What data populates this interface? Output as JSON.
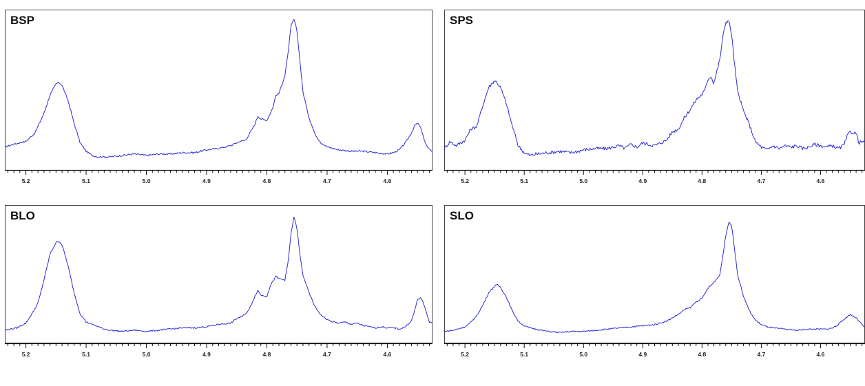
{
  "chart_data": [
    {
      "type": "line",
      "title": "BSP",
      "xlabel": "",
      "ylabel": "",
      "x_reversed": true,
      "xlim": [
        5.235,
        4.525
      ],
      "ylim": [
        0,
        1.0
      ],
      "grid": false,
      "x_ticks": [
        "5.2",
        "5.1",
        "5.0",
        "4.9",
        "4.8",
        "4.7",
        "4.6"
      ],
      "line_color": "#2b2bd6",
      "series": [
        {
          "x": [
            5.235,
            5.22,
            5.2,
            5.185,
            5.17,
            5.16,
            5.15,
            5.145,
            5.14,
            5.13,
            5.12,
            5.11,
            5.1,
            5.09,
            5.08,
            5.06,
            5.04,
            5.02,
            5.0,
            4.98,
            4.96,
            4.94,
            4.92,
            4.9,
            4.88,
            4.86,
            4.845,
            4.835,
            4.82,
            4.815,
            4.81,
            4.8,
            4.79,
            4.785,
            4.78,
            4.77,
            4.765,
            4.76,
            4.755,
            4.75,
            4.745,
            4.74,
            4.73,
            4.72,
            4.71,
            4.7,
            4.69,
            4.68,
            4.66,
            4.64,
            4.62,
            4.6,
            4.59,
            4.58,
            4.57,
            4.56,
            4.555,
            4.55,
            4.545,
            4.54,
            4.535,
            4.53,
            4.525
          ],
          "y": [
            0.09,
            0.11,
            0.13,
            0.19,
            0.33,
            0.46,
            0.54,
            0.55,
            0.53,
            0.42,
            0.26,
            0.12,
            0.06,
            0.03,
            0.02,
            0.02,
            0.03,
            0.04,
            0.03,
            0.04,
            0.04,
            0.05,
            0.05,
            0.07,
            0.08,
            0.1,
            0.13,
            0.14,
            0.25,
            0.31,
            0.29,
            0.28,
            0.37,
            0.46,
            0.47,
            0.6,
            0.75,
            0.95,
            1.0,
            0.92,
            0.7,
            0.48,
            0.3,
            0.18,
            0.12,
            0.09,
            0.08,
            0.07,
            0.06,
            0.06,
            0.05,
            0.04,
            0.05,
            0.07,
            0.12,
            0.19,
            0.24,
            0.26,
            0.23,
            0.16,
            0.1,
            0.07,
            0.06
          ]
        }
      ]
    },
    {
      "type": "line",
      "title": "SPS",
      "xlabel": "",
      "ylabel": "",
      "x_reversed": true,
      "xlim": [
        5.235,
        4.525
      ],
      "ylim": [
        0,
        1.0
      ],
      "grid": false,
      "x_ticks": [
        "5.2",
        "5.1",
        "5.0",
        "4.9",
        "4.8",
        "4.7",
        "4.6"
      ],
      "line_color": "#2b2bd6",
      "series": [
        {
          "x": [
            5.235,
            5.225,
            5.215,
            5.2,
            5.19,
            5.18,
            5.17,
            5.16,
            5.15,
            5.145,
            5.14,
            5.13,
            5.12,
            5.11,
            5.1,
            5.09,
            5.08,
            5.06,
            5.04,
            5.02,
            5.0,
            4.98,
            4.96,
            4.94,
            4.93,
            4.92,
            4.91,
            4.9,
            4.88,
            4.86,
            4.85,
            4.84,
            4.83,
            4.82,
            4.81,
            4.8,
            4.795,
            4.79,
            4.785,
            4.78,
            4.77,
            4.765,
            4.76,
            4.755,
            4.75,
            4.745,
            4.74,
            4.73,
            4.72,
            4.71,
            4.7,
            4.69,
            4.68,
            4.67,
            4.66,
            4.65,
            4.64,
            4.63,
            4.62,
            4.61,
            4.6,
            4.59,
            4.58,
            4.57,
            4.565,
            4.56,
            4.555,
            4.55,
            4.54,
            4.535,
            4.53,
            4.525
          ],
          "y": [
            0.08,
            0.13,
            0.1,
            0.14,
            0.22,
            0.24,
            0.39,
            0.52,
            0.57,
            0.55,
            0.52,
            0.4,
            0.24,
            0.1,
            0.05,
            0.03,
            0.04,
            0.05,
            0.06,
            0.05,
            0.07,
            0.08,
            0.08,
            0.1,
            0.08,
            0.11,
            0.09,
            0.12,
            0.1,
            0.14,
            0.2,
            0.22,
            0.3,
            0.36,
            0.43,
            0.47,
            0.5,
            0.58,
            0.6,
            0.55,
            0.72,
            0.88,
            0.99,
            1.0,
            0.9,
            0.68,
            0.49,
            0.35,
            0.25,
            0.13,
            0.09,
            0.07,
            0.1,
            0.08,
            0.1,
            0.09,
            0.1,
            0.08,
            0.09,
            0.11,
            0.1,
            0.09,
            0.1,
            0.08,
            0.09,
            0.11,
            0.17,
            0.2,
            0.19,
            0.12,
            0.13,
            0.12
          ]
        }
      ]
    },
    {
      "type": "line",
      "title": "BLO",
      "xlabel": "",
      "ylabel": "",
      "x_reversed": true,
      "xlim": [
        5.235,
        4.525
      ],
      "ylim": [
        0,
        1.0
      ],
      "grid": false,
      "x_ticks": [
        "5.2",
        "5.1",
        "5.0",
        "4.9",
        "4.8",
        "4.7",
        "4.6"
      ],
      "line_color": "#2b2bd6",
      "series": [
        {
          "x": [
            5.235,
            5.225,
            5.215,
            5.2,
            5.19,
            5.18,
            5.17,
            5.16,
            5.15,
            5.145,
            5.14,
            5.13,
            5.12,
            5.11,
            5.1,
            5.09,
            5.08,
            5.07,
            5.06,
            5.04,
            5.02,
            5.0,
            4.98,
            4.96,
            4.94,
            4.92,
            4.9,
            4.88,
            4.86,
            4.85,
            4.84,
            4.83,
            4.82,
            4.815,
            4.81,
            4.8,
            4.795,
            4.79,
            4.785,
            4.78,
            4.77,
            4.765,
            4.76,
            4.755,
            4.75,
            4.745,
            4.74,
            4.73,
            4.72,
            4.71,
            4.7,
            4.69,
            4.68,
            4.67,
            4.66,
            4.65,
            4.64,
            4.63,
            4.62,
            4.61,
            4.6,
            4.59,
            4.58,
            4.57,
            4.56,
            4.555,
            4.55,
            4.545,
            4.54,
            4.535,
            4.53,
            4.525
          ],
          "y": [
            0.03,
            0.04,
            0.05,
            0.09,
            0.17,
            0.26,
            0.46,
            0.68,
            0.78,
            0.79,
            0.76,
            0.58,
            0.35,
            0.17,
            0.1,
            0.08,
            0.06,
            0.04,
            0.03,
            0.02,
            0.03,
            0.02,
            0.03,
            0.04,
            0.05,
            0.05,
            0.06,
            0.08,
            0.09,
            0.13,
            0.15,
            0.2,
            0.32,
            0.37,
            0.33,
            0.32,
            0.4,
            0.45,
            0.49,
            0.47,
            0.46,
            0.6,
            0.85,
            1.0,
            0.9,
            0.67,
            0.5,
            0.35,
            0.23,
            0.16,
            0.12,
            0.1,
            0.09,
            0.1,
            0.08,
            0.09,
            0.07,
            0.06,
            0.05,
            0.06,
            0.05,
            0.05,
            0.04,
            0.06,
            0.11,
            0.19,
            0.29,
            0.31,
            0.26,
            0.18,
            0.1,
            0.09
          ]
        }
      ]
    },
    {
      "type": "line",
      "title": "SLO",
      "xlabel": "",
      "ylabel": "",
      "x_reversed": true,
      "xlim": [
        5.235,
        4.525
      ],
      "ylim": [
        0,
        1.0
      ],
      "grid": false,
      "x_ticks": [
        "5.2",
        "5.1",
        "5.0",
        "4.9",
        "4.8",
        "4.7",
        "4.6"
      ],
      "line_color": "#2b2bd6",
      "series": [
        {
          "x": [
            5.235,
            5.22,
            5.2,
            5.19,
            5.18,
            5.17,
            5.16,
            5.15,
            5.145,
            5.14,
            5.13,
            5.12,
            5.11,
            5.1,
            5.09,
            5.08,
            5.06,
            5.04,
            5.02,
            5.0,
            4.98,
            4.96,
            4.94,
            4.92,
            4.9,
            4.88,
            4.86,
            4.85,
            4.84,
            4.83,
            4.82,
            4.81,
            4.8,
            4.79,
            4.78,
            4.77,
            4.765,
            4.76,
            4.755,
            4.75,
            4.745,
            4.74,
            4.73,
            4.72,
            4.71,
            4.7,
            4.69,
            4.68,
            4.66,
            4.64,
            4.62,
            4.6,
            4.59,
            4.58,
            4.57,
            4.56,
            4.55,
            4.54,
            4.53,
            4.525
          ],
          "y": [
            0.02,
            0.03,
            0.06,
            0.1,
            0.16,
            0.25,
            0.36,
            0.42,
            0.43,
            0.41,
            0.32,
            0.2,
            0.11,
            0.07,
            0.05,
            0.04,
            0.02,
            0.01,
            0.02,
            0.02,
            0.03,
            0.04,
            0.05,
            0.06,
            0.07,
            0.08,
            0.11,
            0.14,
            0.17,
            0.21,
            0.23,
            0.28,
            0.31,
            0.4,
            0.45,
            0.52,
            0.68,
            0.86,
            0.98,
            0.96,
            0.74,
            0.52,
            0.33,
            0.2,
            0.12,
            0.08,
            0.06,
            0.05,
            0.04,
            0.03,
            0.04,
            0.04,
            0.04,
            0.05,
            0.08,
            0.13,
            0.17,
            0.14,
            0.08,
            0.05
          ]
        }
      ]
    }
  ]
}
